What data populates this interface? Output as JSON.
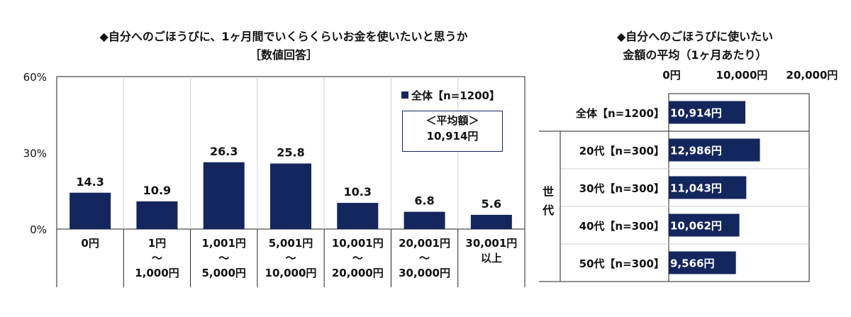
{
  "left_title": {
    "line1": "◆自分へのごほうびに、1ヶ月間でいくらくらいお金を使いたいと思うか",
    "line2": "［数値回答］"
  },
  "right_title": {
    "line1": "◆自分へのごほうびに使いたい",
    "line2": "金額の平均（1ヶ月あたり）"
  },
  "legend_label": "全体【n=1200】",
  "average_box": {
    "line1": "＜平均額＞",
    "line2": "10,914円"
  },
  "colors": {
    "bar": "#14265e",
    "axis": "#222222",
    "grid": "#cfcfcf",
    "label_light": "#ffffff"
  },
  "chart_data": [
    {
      "type": "bar",
      "title": "◆自分へのごほうびに、1ヶ月間でいくらくらいお金を使いたいと思うか［数値回答］",
      "categories": [
        [
          "0円"
        ],
        [
          "1円",
          "～",
          "1,000円"
        ],
        [
          "1,001円",
          "～",
          "5,000円"
        ],
        [
          "5,001円",
          "～",
          "10,000円"
        ],
        [
          "10,001円",
          "～",
          "20,000円"
        ],
        [
          "20,001円",
          "～",
          "30,000円"
        ],
        [
          "30,001円",
          "以上"
        ]
      ],
      "series": [
        {
          "name": "全体【n=1200】",
          "values": [
            14.3,
            10.9,
            26.3,
            25.8,
            10.3,
            6.8,
            5.6
          ]
        }
      ],
      "data_labels": [
        "14.3",
        "10.9",
        "26.3",
        "25.8",
        "10.3",
        "6.8",
        "5.6"
      ],
      "ylim": [
        0,
        60
      ],
      "yticks": [
        "0%",
        "30%",
        "60%"
      ],
      "ytick_values": [
        0,
        30,
        60
      ],
      "grid": "vertical category separators",
      "legend_position": "top-right"
    },
    {
      "type": "bar",
      "orientation": "horizontal",
      "title": "◆自分へのごほうびに使いたい金額の平均（1ヶ月あたり）",
      "categories": [
        "全体【n=1200】",
        "20代【n=300】",
        "30代【n=300】",
        "40代【n=300】",
        "50代【n=300】"
      ],
      "group_label": [
        "世",
        "代"
      ],
      "values": [
        10914,
        12986,
        11043,
        10062,
        9566
      ],
      "data_labels": [
        "10,914円",
        "12,986円",
        "11,043円",
        "10,062円",
        "9,566円"
      ],
      "xlim": [
        0,
        20000
      ],
      "xticks": [
        "0円",
        "10,000円",
        "20,000円"
      ],
      "xtick_values": [
        0,
        10000,
        20000
      ]
    }
  ]
}
